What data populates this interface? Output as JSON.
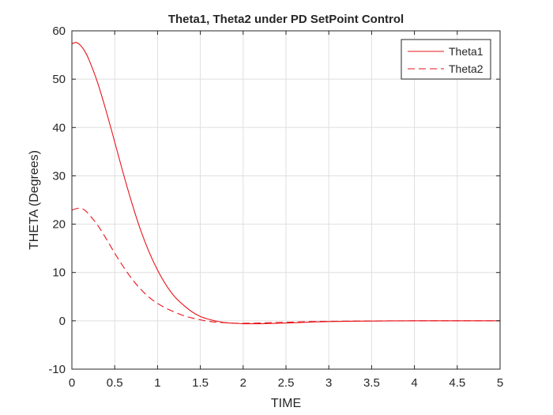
{
  "chart_data": {
    "type": "line",
    "title": "Theta1, Theta2 under PD SetPoint Control",
    "xlabel": "TIME",
    "ylabel": "THETA (Degrees)",
    "xlim": [
      0,
      5
    ],
    "ylim": [
      -10,
      60
    ],
    "xticks": [
      0,
      0.5,
      1,
      1.5,
      2,
      2.5,
      3,
      3.5,
      4,
      4.5,
      5
    ],
    "xtick_labels": [
      "0",
      "0.5",
      "1",
      "1.5",
      "2",
      "2.5",
      "3",
      "3.5",
      "4",
      "4.5",
      "5"
    ],
    "yticks": [
      -10,
      0,
      10,
      20,
      30,
      40,
      50,
      60
    ],
    "ytick_labels": [
      "-10",
      "0",
      "10",
      "20",
      "30",
      "40",
      "50",
      "60"
    ],
    "grid": true,
    "legend_position": "top-right",
    "series": [
      {
        "name": "Theta1",
        "style": "solid",
        "color": "#e8141b",
        "x": [
          0,
          0.05,
          0.1,
          0.15,
          0.2,
          0.3,
          0.4,
          0.5,
          0.6,
          0.7,
          0.8,
          0.9,
          1.0,
          1.1,
          1.2,
          1.3,
          1.4,
          1.5,
          1.6,
          1.7,
          1.8,
          1.9,
          2.0,
          2.1,
          2.2,
          2.4,
          2.6,
          2.8,
          3.0,
          3.5,
          4.0,
          4.5,
          5.0
        ],
        "y": [
          57.3,
          57.6,
          57.0,
          55.8,
          54.0,
          49.3,
          43.4,
          37.0,
          30.5,
          24.4,
          18.9,
          14.3,
          10.5,
          7.4,
          5.0,
          3.3,
          1.9,
          0.9,
          0.3,
          -0.1,
          -0.4,
          -0.5,
          -0.6,
          -0.6,
          -0.6,
          -0.5,
          -0.4,
          -0.25,
          -0.15,
          -0.05,
          0.0,
          0.0,
          0.0
        ]
      },
      {
        "name": "Theta2",
        "style": "dashed",
        "color": "#e8141b",
        "x": [
          0,
          0.05,
          0.1,
          0.15,
          0.2,
          0.3,
          0.4,
          0.5,
          0.6,
          0.7,
          0.8,
          0.9,
          1.0,
          1.1,
          1.2,
          1.3,
          1.4,
          1.5,
          1.6,
          1.7,
          1.8,
          1.9,
          2.0,
          2.2,
          2.4,
          2.6,
          2.8,
          3.0,
          3.5,
          4.0,
          4.5,
          5.0
        ],
        "y": [
          22.9,
          23.2,
          23.3,
          22.9,
          22.0,
          19.8,
          17.0,
          14.0,
          11.2,
          8.7,
          6.6,
          4.9,
          3.6,
          2.6,
          1.8,
          1.1,
          0.6,
          0.2,
          -0.1,
          -0.3,
          -0.4,
          -0.5,
          -0.5,
          -0.45,
          -0.35,
          -0.25,
          -0.15,
          -0.1,
          -0.03,
          0.0,
          0.0,
          0.0
        ]
      }
    ]
  }
}
